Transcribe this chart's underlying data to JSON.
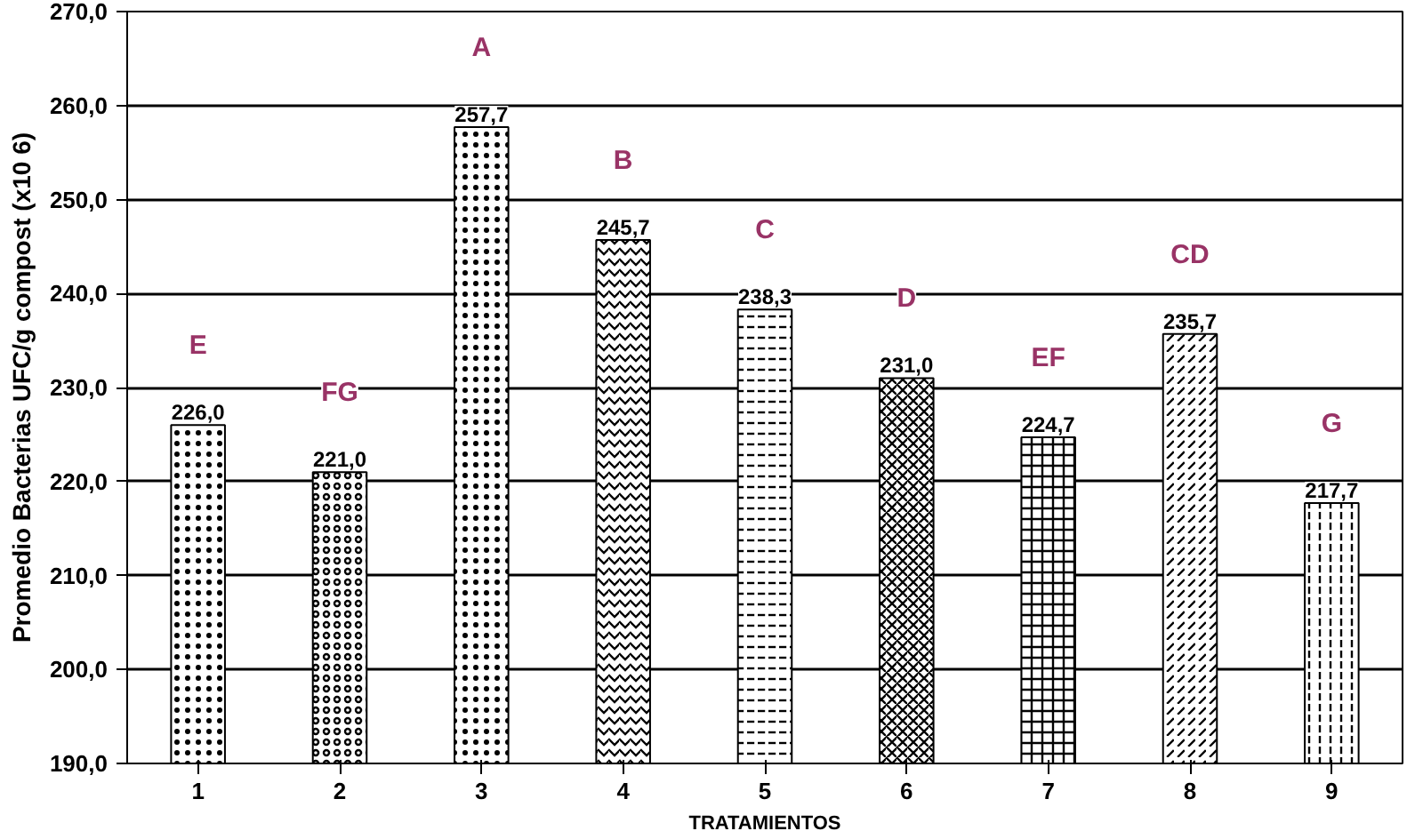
{
  "chart_data": {
    "type": "bar",
    "xlabel": "TRATAMIENTOS",
    "ylabel": "Promedio Bacterias UFC/g compost (x10 6)",
    "categories": [
      "1",
      "2",
      "3",
      "4",
      "5",
      "6",
      "7",
      "8",
      "9"
    ],
    "values": [
      226.0,
      221.0,
      257.7,
      245.7,
      238.3,
      231.0,
      224.7,
      235.7,
      217.7
    ],
    "value_labels": [
      "226,0",
      "221,0",
      "257,7",
      "245,7",
      "238,3",
      "231,0",
      "224,7",
      "235,7",
      "217,7"
    ],
    "color": "#000000",
    "ylim": [
      190,
      270
    ],
    "yticks": [
      {
        "value": 190,
        "label": "190,0"
      },
      {
        "value": 200,
        "label": "200,0"
      },
      {
        "value": 210,
        "label": "210,0"
      },
      {
        "value": 220,
        "label": "220,0"
      },
      {
        "value": 230,
        "label": "230,0"
      },
      {
        "value": 240,
        "label": "240,0"
      },
      {
        "value": 250,
        "label": "250,0"
      },
      {
        "value": 260,
        "label": "260,0"
      },
      {
        "value": 270,
        "label": "270,0"
      }
    ],
    "grid": "y",
    "annotations": [
      "E",
      "FG",
      "A",
      "B",
      "C",
      "D",
      "EF",
      "CD",
      "G"
    ]
  }
}
